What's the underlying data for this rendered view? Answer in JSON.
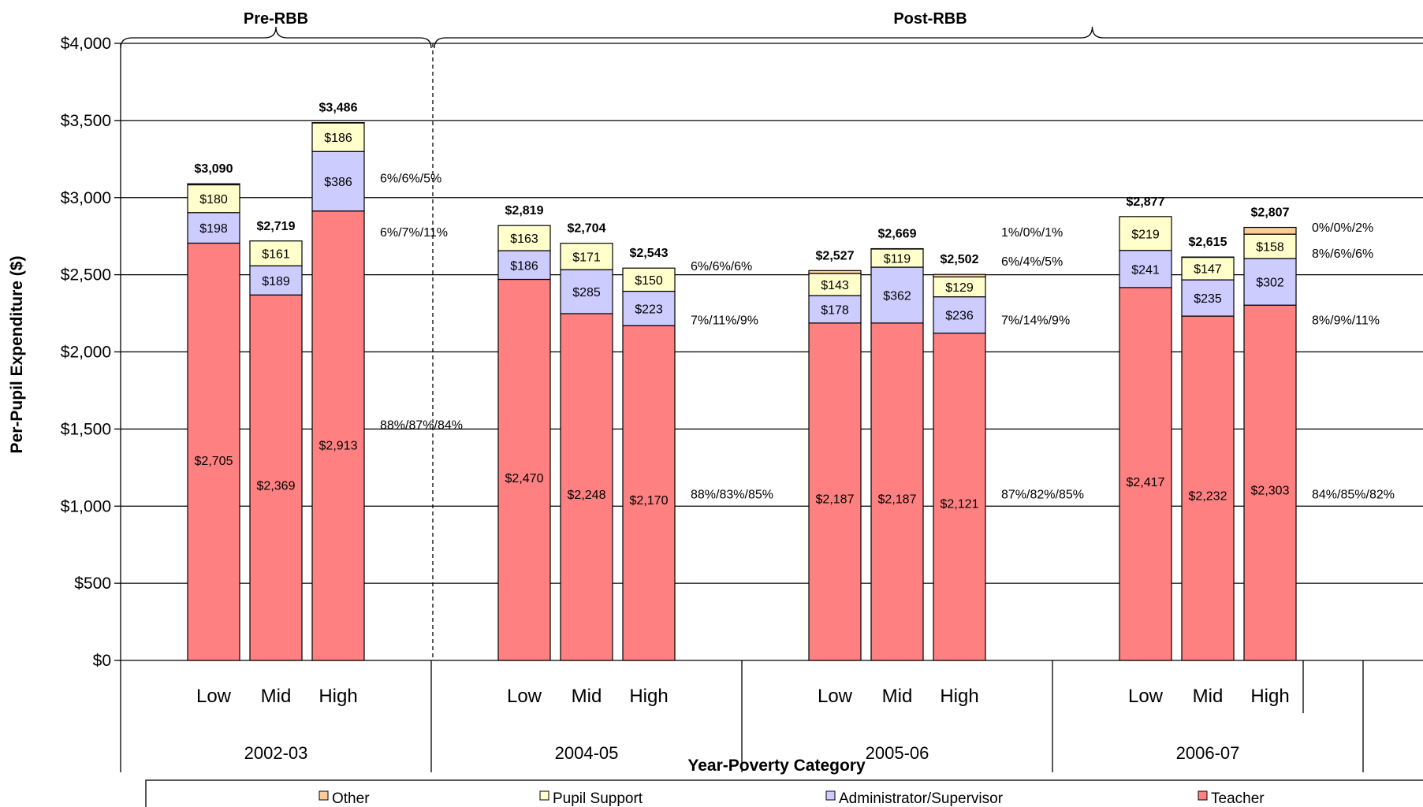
{
  "chart_data": {
    "type": "bar",
    "stacked": true,
    "ylabel": "Per-Pupil Expenditure ($)",
    "xlabel": "Year-Poverty Category",
    "ylim": [
      0,
      4000
    ],
    "yticks": [
      0,
      500,
      1000,
      1500,
      2000,
      2500,
      3000,
      3500,
      4000
    ],
    "ytick_labels": [
      "$0",
      "$500",
      "$1,000",
      "$1,500",
      "$2,000",
      "$2,500",
      "$3,000",
      "$3,500",
      "$4,000"
    ],
    "grid": true,
    "legend_position": "bottom",
    "groups": [
      {
        "year": "2002-03",
        "categories": [
          "Low",
          "Mid",
          "High"
        ]
      },
      {
        "year": "2004-05",
        "categories": [
          "Low",
          "Mid",
          "High"
        ]
      },
      {
        "year": "2005-06",
        "categories": [
          "Low",
          "Mid",
          "High"
        ]
      },
      {
        "year": "2006-07",
        "categories": [
          "Low",
          "Mid",
          "High"
        ]
      }
    ],
    "series": [
      {
        "name": "Teacher",
        "color": "#ff8080",
        "values": [
          2705,
          2369,
          2913,
          2470,
          2248,
          2170,
          2187,
          2187,
          2121,
          2417,
          2232,
          2303
        ],
        "labels": [
          "$2,705",
          "$2,369",
          "$2,913",
          "$2,470",
          "$2,248",
          "$2,170",
          "$2,187",
          "$2,187",
          "$2,121",
          "$2,417",
          "$2,232",
          "$2,303"
        ]
      },
      {
        "name": "Administrator/Supervisor",
        "color": "#ccccff",
        "values": [
          198,
          189,
          386,
          186,
          285,
          223,
          178,
          362,
          236,
          241,
          235,
          302
        ],
        "labels": [
          "$198",
          "$189",
          "$386",
          "$186",
          "$285",
          "$223",
          "$178",
          "$362",
          "$236",
          "$241",
          "$235",
          "$302"
        ]
      },
      {
        "name": "Pupil Support",
        "color": "#ffffcc",
        "values": [
          180,
          161,
          186,
          163,
          171,
          150,
          143,
          119,
          129,
          219,
          147,
          158
        ],
        "labels": [
          "$180",
          "$161",
          "$186",
          "$163",
          "$171",
          "$150",
          "$143",
          "$119",
          "$129",
          "$219",
          "$147",
          "$158"
        ]
      },
      {
        "name": "Other",
        "color": "#ffcc99",
        "values": [
          7,
          0,
          1,
          0,
          0,
          0,
          19,
          1,
          16,
          0,
          1,
          44
        ],
        "labels": []
      }
    ],
    "totals": [
      "$3,090",
      "$2,719",
      "$3,486",
      "$2,819",
      "$2,704",
      "$2,543",
      "$2,527",
      "$2,669",
      "$2,502",
      "$2,877",
      "$2,615",
      "$2,807"
    ],
    "legend_order": [
      "Other",
      "Pupil Support",
      "Administrator/Supervisor",
      "Teacher"
    ],
    "periods": [
      {
        "label": "Pre-RBB",
        "group_start": 0,
        "group_end": 0
      },
      {
        "label": "Post-RBB",
        "group_start": 1,
        "group_end": 3
      }
    ],
    "annotations": [
      {
        "group": 0,
        "value": 3130,
        "text": "6%/6%/5%"
      },
      {
        "group": 0,
        "value": 2780,
        "text": "6%/7%/11%"
      },
      {
        "group": 0,
        "value": 1530,
        "text": "88%/87%/84%"
      },
      {
        "group": 1,
        "value": 2560,
        "text": "6%/6%/6%"
      },
      {
        "group": 1,
        "value": 2210,
        "text": "7%/11%/9%"
      },
      {
        "group": 1,
        "value": 1080,
        "text": "88%/83%/85%"
      },
      {
        "group": 2,
        "value": 2780,
        "text": "1%/0%/1%"
      },
      {
        "group": 2,
        "value": 2590,
        "text": "6%/4%/5%"
      },
      {
        "group": 2,
        "value": 2210,
        "text": "7%/14%/9%"
      },
      {
        "group": 2,
        "value": 1080,
        "text": "87%/82%/85%"
      },
      {
        "group": 3,
        "value": 2810,
        "text": "0%/0%/2%"
      },
      {
        "group": 3,
        "value": 2640,
        "text": "8%/6%/6%"
      },
      {
        "group": 3,
        "value": 2210,
        "text": "8%/9%/11%"
      },
      {
        "group": 3,
        "value": 1080,
        "text": "84%/85%/82%"
      }
    ]
  }
}
